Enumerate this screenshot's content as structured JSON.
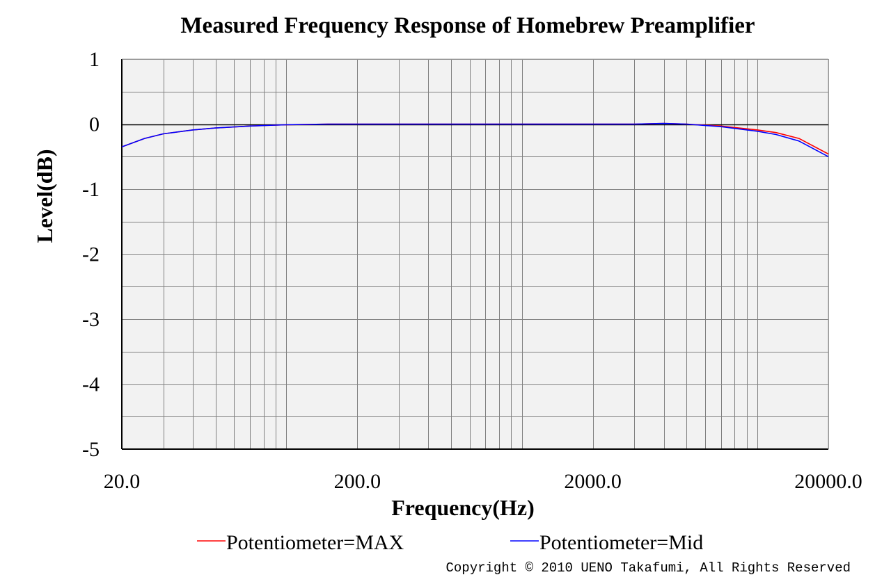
{
  "chart_data": {
    "type": "line",
    "title": "Measured Frequency Response of Homebrew Preamplifier",
    "xlabel": "Frequency(Hz)",
    "ylabel": "Level(dB)",
    "x_scale": "log",
    "xlim": [
      20,
      20000
    ],
    "ylim": [
      -5,
      1
    ],
    "grid": true,
    "legend_position": "bottom",
    "x_ticks": [
      {
        "value": 20,
        "label": "20.0"
      },
      {
        "value": 200,
        "label": "200.0"
      },
      {
        "value": 2000,
        "label": "2000.0"
      },
      {
        "value": 20000,
        "label": "20000.0"
      }
    ],
    "y_ticks": [
      {
        "value": 1,
        "label": "1"
      },
      {
        "value": 0,
        "label": "0"
      },
      {
        "value": -1,
        "label": "-1"
      },
      {
        "value": -2,
        "label": "-2"
      },
      {
        "value": -3,
        "label": "-3"
      },
      {
        "value": -4,
        "label": "-4"
      },
      {
        "value": -5,
        "label": "-5"
      }
    ],
    "series": [
      {
        "name": "Potentiometer=MAX",
        "color": "#ff0000",
        "x": [
          20,
          25,
          30,
          40,
          50,
          70,
          100,
          150,
          200,
          500,
          1000,
          2000,
          3000,
          4000,
          5000,
          7000,
          10000,
          12000,
          15000,
          20000
        ],
        "y": [
          -0.35,
          -0.22,
          -0.15,
          -0.09,
          -0.06,
          -0.03,
          -0.01,
          0.0,
          0.0,
          0.0,
          0.0,
          0.0,
          0.0,
          0.01,
          0.0,
          -0.03,
          -0.09,
          -0.13,
          -0.22,
          -0.46
        ]
      },
      {
        "name": "Potentiometer=Mid",
        "color": "#0000ff",
        "x": [
          20,
          25,
          30,
          40,
          50,
          70,
          100,
          150,
          200,
          500,
          1000,
          2000,
          3000,
          4000,
          5000,
          7000,
          10000,
          12000,
          15000,
          20000
        ],
        "y": [
          -0.35,
          -0.22,
          -0.15,
          -0.09,
          -0.06,
          -0.03,
          -0.01,
          0.0,
          0.0,
          0.0,
          0.0,
          0.0,
          0.0,
          0.01,
          0.0,
          -0.04,
          -0.11,
          -0.16,
          -0.26,
          -0.5
        ]
      }
    ]
  },
  "copyright": "Copyright © 2010 UENO Takafumi, All Rights Reserved",
  "colors": {
    "plot_background": "#f2f2f2",
    "grid": "#808080",
    "axis": "#000000"
  }
}
